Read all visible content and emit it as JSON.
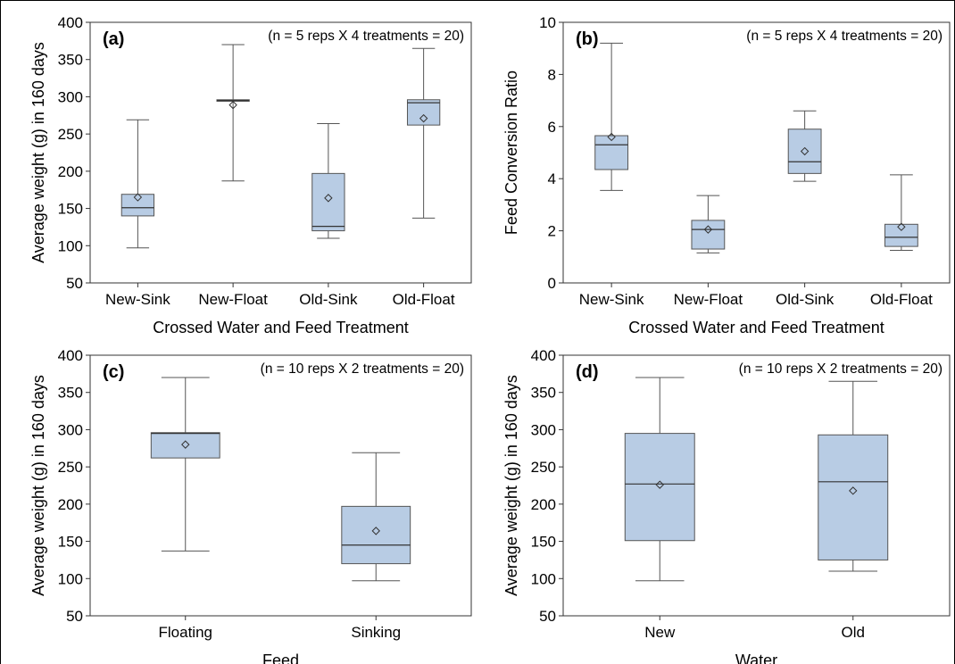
{
  "chart_data": [
    {
      "type": "box",
      "panel_label": "(a)",
      "annotation": "(n = 5 reps X 4 treatments = 20)",
      "xlabel": "Crossed Water and Feed Treatment",
      "ylabel": "Average weight (g) in 160 days",
      "ylim": [
        50,
        400
      ],
      "yticks": [
        50,
        100,
        150,
        200,
        250,
        300,
        350,
        400
      ],
      "grid": false,
      "box_color": "#b8cce4",
      "categories": [
        "New-Sink",
        "New-Float",
        "Old-Sink",
        "Old-Float"
      ],
      "boxes": [
        {
          "category": "New-Sink",
          "min": 97,
          "q1": 140,
          "median": 151,
          "q3": 169,
          "max": 269,
          "mean": 165
        },
        {
          "category": "New-Float",
          "min": 187,
          "q1": 294,
          "median": 295,
          "q3": 296,
          "max": 370,
          "mean": 289
        },
        {
          "category": "Old-Sink",
          "min": 110,
          "q1": 120,
          "median": 126,
          "q3": 197,
          "max": 264,
          "mean": 164
        },
        {
          "category": "Old-Float",
          "min": 137,
          "q1": 262,
          "median": 292,
          "q3": 296,
          "max": 365,
          "mean": 271
        }
      ]
    },
    {
      "type": "box",
      "panel_label": "(b)",
      "annotation": "(n = 5 reps X 4 treatments = 20)",
      "xlabel": "Crossed Water and Feed Treatment",
      "ylabel": "Feed Conversion Ratio",
      "ylim": [
        0,
        10
      ],
      "yticks": [
        0,
        2,
        4,
        6,
        8,
        10
      ],
      "grid": false,
      "box_color": "#b8cce4",
      "categories": [
        "New-Sink",
        "New-Float",
        "Old-Sink",
        "Old-Float"
      ],
      "boxes": [
        {
          "category": "New-Sink",
          "min": 3.55,
          "q1": 4.35,
          "median": 5.3,
          "q3": 5.65,
          "max": 9.2,
          "mean": 5.6
        },
        {
          "category": "New-Float",
          "min": 1.15,
          "q1": 1.3,
          "median": 2.05,
          "q3": 2.4,
          "max": 3.35,
          "mean": 2.05
        },
        {
          "category": "Old-Sink",
          "min": 3.9,
          "q1": 4.2,
          "median": 4.65,
          "q3": 5.9,
          "max": 6.6,
          "mean": 5.05
        },
        {
          "category": "Old-Float",
          "min": 1.25,
          "q1": 1.4,
          "median": 1.75,
          "q3": 2.25,
          "max": 4.15,
          "mean": 2.15
        }
      ]
    },
    {
      "type": "box",
      "panel_label": "(c)",
      "annotation": "(n = 10 reps X 2 treatments = 20)",
      "xlabel": "Feed",
      "ylabel": "Average weight (g) in 160 days",
      "ylim": [
        50,
        400
      ],
      "yticks": [
        50,
        100,
        150,
        200,
        250,
        300,
        350,
        400
      ],
      "grid": false,
      "box_color": "#b8cce4",
      "categories": [
        "Floating",
        "Sinking"
      ],
      "boxes": [
        {
          "category": "Floating",
          "min": 137,
          "q1": 262,
          "median": 295,
          "q3": 296,
          "max": 370,
          "mean": 280
        },
        {
          "category": "Sinking",
          "min": 97,
          "q1": 120,
          "median": 145,
          "q3": 197,
          "max": 269,
          "mean": 164
        }
      ]
    },
    {
      "type": "box",
      "panel_label": "(d)",
      "annotation": "(n = 10 reps X 2 treatments = 20)",
      "xlabel": "Water",
      "ylabel": "Average weight (g) in 160 days",
      "ylim": [
        50,
        400
      ],
      "yticks": [
        50,
        100,
        150,
        200,
        250,
        300,
        350,
        400
      ],
      "grid": false,
      "box_color": "#b8cce4",
      "categories": [
        "New",
        "Old"
      ],
      "boxes": [
        {
          "category": "New",
          "min": 97,
          "q1": 151,
          "median": 227,
          "q3": 295,
          "max": 370,
          "mean": 226
        },
        {
          "category": "Old",
          "min": 110,
          "q1": 125,
          "median": 230,
          "q3": 293,
          "max": 365,
          "mean": 218
        }
      ]
    }
  ]
}
